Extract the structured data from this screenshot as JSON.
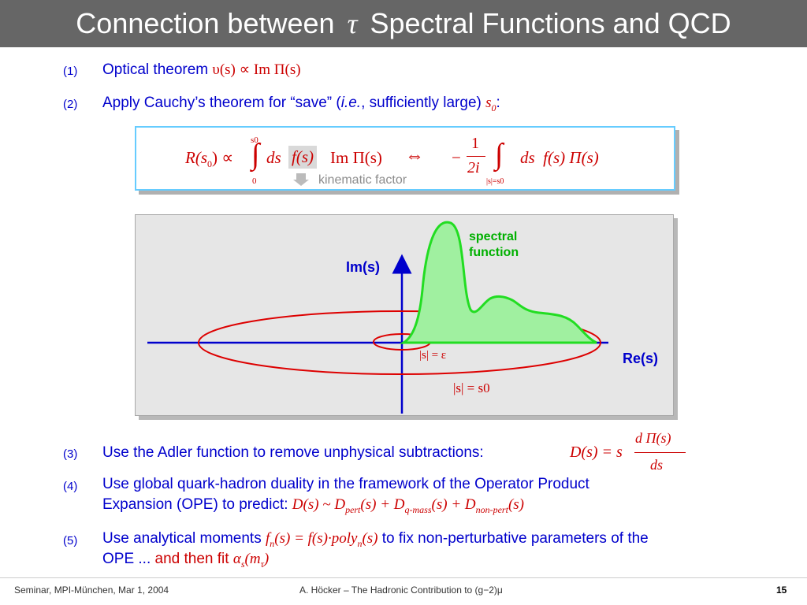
{
  "header": {
    "title_before": "Connection between",
    "title_symbol": "τ",
    "title_after": "Spectral Functions and QCD"
  },
  "items": [
    {
      "number": "(1)",
      "text": "Optical theorem",
      "formula": "υ(s) ∝ Im Π(s)"
    },
    {
      "number": "(2)",
      "text_before": "Apply Cauchy’s theorem for “save” (",
      "text_ie": "i.e.",
      "text_after": ", sufficiently large)",
      "formula": "s",
      "formula_sub": "0",
      "suffix": ":"
    },
    {
      "number": "(3)",
      "text": "Use the Adler function to remove unphysical subtractions:",
      "formula_lhs": "D(s) = s",
      "formula_num": "d Π(s)",
      "formula_den": "ds"
    },
    {
      "number": "(4)",
      "line1": "Use global quark-hadron duality in the framework of the Operator Product",
      "line2_text": "Expansion (OPE) to predict:",
      "formula": "D(s) ~ D",
      "sub1": "pert",
      "mid1": "(s) + D",
      "sub2": "q-mass",
      "mid2": "(s) + D",
      "sub3": "non-pert",
      "end": "(s)"
    },
    {
      "number": "(5)",
      "text_before": "Use analytical moments",
      "formula": "f",
      "formula_sub": "n",
      "formula_rest": "(s) = f(s)·poly",
      "formula_sub2": "n",
      "formula_end": "(s)",
      "text_after": "to fix non-perturbative parameters of the",
      "line2_text": "OPE ...",
      "line2_red": "and then fit",
      "alpha": "α",
      "alpha_sub": "s",
      "alpha_rest": "(m",
      "alpha_sub2": "τ",
      "alpha_end": ")"
    }
  ],
  "formula_box": {
    "lhs": "R(s",
    "lhs_sub": "0",
    "lhs_end": ") ∝",
    "upper_limit": "s0",
    "lower_limit": "0",
    "integrand": "ds",
    "kinematic": "f(s)",
    "spectral": "Im Π(s)",
    "equiv": "⇔",
    "minus": "−",
    "frac_num": "1",
    "frac_den": "2i",
    "contour_limit": "|s|=s0",
    "rhs": "ds  f(s) Π(s)",
    "kinematic_label": "kinematic factor"
  },
  "diagram": {
    "im_axis_label": "Im(s)",
    "re_axis_label": "Re(s)",
    "spectral_label_1": "spectral",
    "spectral_label_2": "function",
    "small_circle_label": "|s| = ε",
    "big_circle_label": "|s| = s0"
  },
  "footer": {
    "left": "Seminar, MPI-München, Mar 1, 2004",
    "center": "A. Höcker – The Hadronic Contribution to (g−2)μ",
    "page": "15"
  }
}
